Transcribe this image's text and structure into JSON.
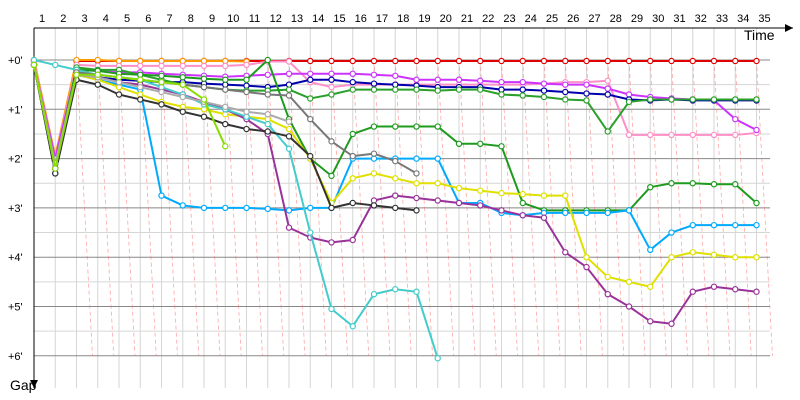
{
  "chart_data": {
    "type": "line",
    "xlabel": "Time",
    "ylabel": "Gap",
    "x_ticks": [
      "1",
      "2",
      "3",
      "4",
      "5",
      "6",
      "7",
      "8",
      "9",
      "10",
      "11",
      "12",
      "13",
      "14",
      "15",
      "16",
      "17",
      "18",
      "19",
      "20",
      "21",
      "22",
      "23",
      "24",
      "25",
      "26",
      "27",
      "28",
      "29",
      "30",
      "31",
      "32",
      "33",
      "34",
      "35"
    ],
    "y_ticks": [
      "+0'",
      "+1'",
      "+2'",
      "+3'",
      "+4'",
      "+5'",
      "+6'"
    ],
    "ylim": [
      0,
      6.6
    ],
    "y_inverted": true,
    "grid": true,
    "series": [
      {
        "color": "#e00000",
        "values": [
          0.02,
          2.0,
          0.02,
          0.02,
          0.02,
          0.02,
          0.02,
          0.02,
          0.02,
          0.02,
          0.02,
          0.02,
          0.02,
          0.02,
          0.02,
          0.02,
          0.02,
          0.02,
          0.02,
          0.02,
          0.02,
          0.02,
          0.02,
          0.02,
          0.02,
          0.02,
          0.02,
          0.02,
          0.02,
          0.02,
          0.02,
          0.02,
          0.02,
          0.02,
          0.02
        ]
      },
      {
        "color": "#ff9900",
        "values": [
          0.0,
          1.95,
          0.0,
          0.0,
          0.02,
          0.02,
          0.02,
          0.02,
          0.02,
          0.02,
          0.03
        ]
      },
      {
        "color": "#ff8fc8",
        "values": [
          0.05,
          2.0,
          0.1,
          0.12,
          0.12,
          0.12,
          0.12,
          0.12,
          0.12,
          0.12,
          0.1,
          0.03,
          0.03,
          0.45,
          0.55,
          0.5,
          0.5,
          0.5,
          0.5,
          0.5,
          0.5,
          0.5,
          0.5,
          0.5,
          0.48,
          0.45,
          0.45,
          0.42,
          1.52,
          1.52,
          1.52,
          1.52,
          1.52,
          1.52,
          1.48
        ]
      },
      {
        "color": "#cc33ff",
        "values": [
          0.1,
          2.0,
          0.2,
          0.22,
          0.25,
          0.25,
          0.28,
          0.3,
          0.32,
          0.34,
          0.32,
          0.3,
          0.28,
          0.28,
          0.28,
          0.28,
          0.3,
          0.32,
          0.4,
          0.4,
          0.4,
          0.42,
          0.45,
          0.45,
          0.48,
          0.5,
          0.5,
          0.58,
          0.7,
          0.75,
          0.78,
          0.8,
          0.82,
          1.2,
          1.42
        ]
      },
      {
        "color": "#0000aa",
        "values": [
          0.1,
          2.3,
          0.3,
          0.35,
          0.4,
          0.42,
          0.45,
          0.45,
          0.48,
          0.5,
          0.52,
          0.55,
          0.5,
          0.4,
          0.4,
          0.45,
          0.48,
          0.5,
          0.52,
          0.55,
          0.55,
          0.55,
          0.6,
          0.6,
          0.62,
          0.65,
          0.68,
          0.7,
          0.8,
          0.82,
          0.8,
          0.82,
          0.82,
          0.82,
          0.82
        ]
      },
      {
        "color": "#2aa02a",
        "values": [
          0.1,
          2.2,
          0.15,
          0.2,
          0.2,
          0.3,
          0.4,
          0.5,
          0.55,
          0.6,
          0.62,
          0.62,
          0.6,
          0.78,
          0.7,
          0.6,
          0.6,
          0.6,
          0.6,
          0.62,
          0.6,
          0.6,
          0.7,
          0.72,
          0.75,
          0.8,
          0.82,
          1.45,
          0.85,
          0.8,
          0.8,
          0.8,
          0.8,
          0.8,
          0.8
        ]
      },
      {
        "color": "#1e9b1e",
        "values": [
          0.1,
          2.2,
          0.2,
          0.22,
          0.28,
          0.3,
          0.32,
          0.35,
          0.38,
          0.4,
          0.4,
          0.0,
          1.2,
          2.0,
          2.35,
          1.5,
          1.35,
          1.35,
          1.35,
          1.35,
          1.7,
          1.7,
          1.75,
          2.9,
          3.05,
          3.05,
          3.05,
          3.05,
          3.05,
          2.58,
          2.5,
          2.5,
          2.52,
          2.52,
          2.9
        ]
      },
      {
        "color": "#00aaff",
        "values": [
          0.1,
          2.2,
          0.3,
          0.4,
          0.5,
          0.6,
          2.75,
          2.95,
          3.0,
          3.0,
          3.0,
          3.02,
          3.05,
          3.0,
          3.0,
          2.0,
          2.0,
          2.0,
          2.0,
          2.0,
          2.9,
          2.9,
          3.1,
          3.15,
          3.1,
          3.1,
          3.1,
          3.1,
          3.05,
          3.85,
          3.5,
          3.35,
          3.35,
          3.35,
          3.35
        ]
      },
      {
        "color": "#e0e000",
        "values": [
          0.1,
          2.2,
          0.3,
          0.4,
          0.55,
          0.7,
          0.85,
          0.95,
          1.0,
          1.1,
          1.15,
          1.2,
          1.4,
          2.0,
          2.9,
          2.4,
          2.3,
          2.4,
          2.5,
          2.5,
          2.6,
          2.65,
          2.7,
          2.72,
          2.75,
          2.75,
          4.0,
          4.4,
          4.5,
          4.6,
          4.0,
          3.9,
          3.95,
          4.0,
          4.0
        ]
      },
      {
        "color": "#993399",
        "values": [
          0.1,
          2.2,
          0.3,
          0.35,
          0.45,
          0.5,
          0.6,
          0.7,
          0.85,
          1.0,
          1.2,
          1.5,
          3.4,
          3.6,
          3.7,
          3.65,
          2.85,
          2.75,
          2.8,
          2.85,
          2.9,
          2.95,
          3.05,
          3.15,
          3.2,
          3.9,
          4.2,
          4.75,
          5.0,
          5.3,
          5.35,
          4.7,
          4.6,
          4.65,
          4.7
        ]
      },
      {
        "color": "#44cccc",
        "values": [
          0.0,
          0.1,
          0.2,
          0.3,
          0.35,
          0.4,
          0.55,
          0.7,
          0.9,
          1.0,
          1.15,
          1.3,
          1.8,
          3.5,
          5.05,
          5.4,
          4.75,
          4.65,
          4.7,
          6.05
        ]
      },
      {
        "color": "#333333",
        "values": [
          0.1,
          2.3,
          0.4,
          0.5,
          0.7,
          0.8,
          0.9,
          1.05,
          1.15,
          1.3,
          1.4,
          1.45,
          1.55,
          1.95,
          3.0,
          2.9,
          2.95,
          3.0,
          3.05
        ]
      },
      {
        "color": "#777777",
        "values": [
          0.1,
          2.2,
          0.25,
          0.3,
          0.35,
          0.4,
          0.45,
          0.5,
          0.55,
          0.6,
          0.65,
          0.7,
          0.72,
          1.2,
          1.65,
          1.95,
          1.9,
          2.05,
          2.3
        ]
      },
      {
        "color": "#aaaaaa",
        "values": [
          0.1,
          2.1,
          0.3,
          0.35,
          0.45,
          0.55,
          0.65,
          0.75,
          0.85,
          0.95,
          1.05,
          1.1,
          1.25
        ]
      },
      {
        "color": "#88dd00",
        "values": [
          0.1,
          2.2,
          0.3,
          0.3,
          0.35,
          0.4,
          0.45,
          0.5,
          0.8,
          1.75
        ]
      }
    ]
  }
}
